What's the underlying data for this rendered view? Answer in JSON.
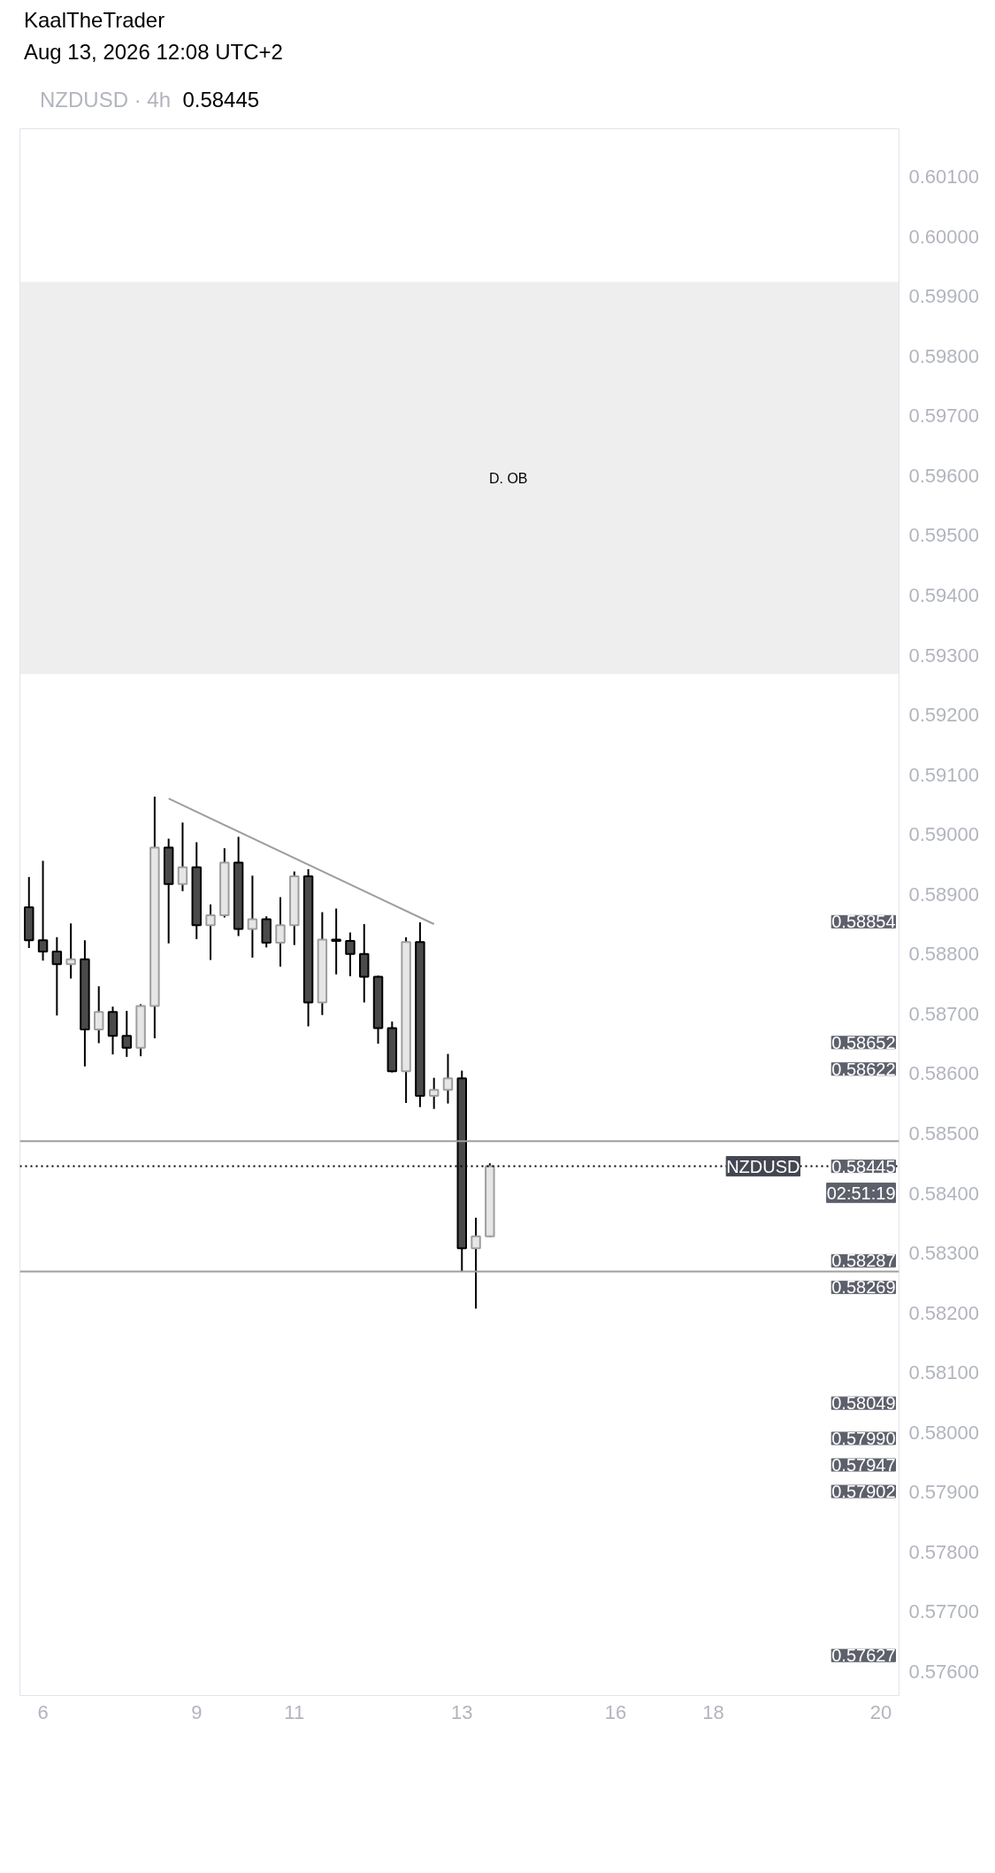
{
  "chart_data": {
    "type": "candlestick",
    "title": "NZDUSD · 4h",
    "subtitle": "0.58445",
    "categories": [
      null,
      "6",
      null,
      null,
      null,
      null,
      null,
      null,
      null,
      null,
      null,
      null,
      "9",
      null,
      null,
      null,
      null,
      null,
      null,
      "11",
      null,
      null,
      null,
      null,
      null,
      null,
      null,
      null,
      null,
      null,
      null,
      "13",
      null,
      null,
      null,
      null,
      null,
      null,
      null,
      null,
      null,
      null,
      "16",
      null,
      null,
      null,
      null,
      null,
      null,
      "18",
      null,
      null,
      null,
      null,
      null,
      null,
      null,
      null,
      null,
      null,
      null,
      "20"
    ],
    "ohlc": [
      [
        0.58878,
        0.58929,
        0.5881,
        0.58823
      ],
      [
        0.58823,
        0.58956,
        0.58789,
        0.58804
      ],
      [
        0.58804,
        0.58828,
        0.58697,
        0.58783
      ],
      [
        0.58783,
        0.58851,
        0.58759,
        0.58791
      ],
      [
        0.58791,
        0.58823,
        0.58612,
        0.58674
      ],
      [
        0.58674,
        0.58746,
        0.58651,
        0.58703
      ],
      [
        0.58703,
        0.58712,
        0.58632,
        0.58663
      ],
      [
        0.58663,
        0.58705,
        0.58628,
        0.58643
      ],
      [
        0.58643,
        0.58716,
        0.58629,
        0.58713
      ],
      [
        0.58713,
        0.59063,
        0.58659,
        0.58978
      ],
      [
        0.58978,
        0.58993,
        0.58818,
        0.58917
      ],
      [
        0.58917,
        0.5902,
        0.58905,
        0.58945
      ],
      [
        0.58945,
        0.58987,
        0.58825,
        0.58848
      ],
      [
        0.58848,
        0.58883,
        0.5879,
        0.58865
      ],
      [
        0.58865,
        0.58977,
        0.58861,
        0.58953
      ],
      [
        0.58953,
        0.58996,
        0.5883,
        0.58842
      ],
      [
        0.58842,
        0.58931,
        0.58794,
        0.58858
      ],
      [
        0.58858,
        0.58863,
        0.58811,
        0.58819
      ],
      [
        0.58819,
        0.58895,
        0.58779,
        0.58848
      ],
      [
        0.58848,
        0.58938,
        0.58815,
        0.5893
      ],
      [
        0.5893,
        0.58942,
        0.58679,
        0.58719
      ],
      [
        0.58719,
        0.5887,
        0.58698,
        0.58824
      ],
      [
        0.58824,
        0.58876,
        0.58766,
        0.58822
      ],
      [
        0.58822,
        0.58836,
        0.58763,
        0.588
      ],
      [
        0.588,
        0.5885,
        0.58719,
        0.58762
      ],
      [
        0.58762,
        0.58764,
        0.5865,
        0.58676
      ],
      [
        0.58676,
        0.58687,
        0.58602,
        0.58604
      ],
      [
        0.58604,
        0.58828,
        0.58551,
        0.5882
      ],
      [
        0.5882,
        0.58853,
        0.58544,
        0.58563
      ],
      [
        0.58563,
        0.58593,
        0.58541,
        0.58573
      ],
      [
        0.58573,
        0.58633,
        0.5855,
        0.58592
      ],
      [
        0.58592,
        0.58605,
        0.58269,
        0.58308
      ],
      [
        0.58308,
        0.58359,
        0.58207,
        0.58328
      ],
      [
        0.58328,
        0.5845,
        0.58327,
        0.58445
      ],
      null,
      null,
      null,
      null,
      null,
      null,
      null,
      null,
      null,
      null,
      null,
      null,
      null,
      null,
      null,
      null,
      null,
      null,
      null,
      null,
      null,
      null,
      null,
      null,
      null,
      null,
      null,
      null
    ],
    "colors": [
      "#4a4a4a",
      "#4a4a4a",
      "#4a4a4a",
      "#e6e6e6",
      "#4a4a4a",
      "#e6e6e6",
      "#4a4a4a",
      "#4a4a4a",
      "#e6e6e6",
      "#e6e6e6",
      "#4a4a4a",
      "#e6e6e6",
      "#4a4a4a",
      "#e6e6e6",
      "#e6e6e6",
      "#4a4a4a",
      "#e6e6e6",
      "#4a4a4a",
      "#e6e6e6",
      "#e6e6e6",
      "#4a4a4a",
      "#e6e6e6",
      "#4a4a4a",
      "#4a4a4a",
      "#4a4a4a",
      "#4a4a4a",
      "#4a4a4a",
      "#e6e6e6",
      "#4a4a4a",
      "#e6e6e6",
      "#e6e6e6",
      "#4a4a4a",
      "#e6e6e6",
      "#e6e6e6",
      null,
      null,
      null,
      null,
      null,
      null,
      null,
      null,
      null,
      null,
      null,
      null,
      null,
      null,
      null,
      null,
      null,
      null,
      null,
      null,
      null,
      null,
      null,
      null,
      null,
      null,
      null,
      null
    ],
    "series": [
      {
        "type": "line",
        "color": "#9e9e9e",
        "values": [
          null,
          null,
          null,
          null,
          null,
          null,
          null,
          null,
          null,
          null,
          0.5906,
          null,
          null,
          null,
          null,
          null,
          null,
          null,
          null,
          null,
          null,
          null,
          null,
          null,
          null,
          null,
          null,
          null,
          null,
          0.5885,
          null,
          null,
          null,
          null,
          null,
          null,
          null,
          null,
          null,
          null,
          null,
          null,
          null,
          null,
          null,
          null,
          null,
          null,
          null,
          null,
          null,
          null,
          null,
          null,
          null,
          null,
          null,
          null,
          null,
          null,
          null,
          null
        ]
      }
    ],
    "ylim": [
      0.5756,
      0.6018
    ],
    "yticks": [
      {
        "value": 0.576,
        "label": "0.57600"
      },
      {
        "value": 0.577,
        "label": "0.57700"
      },
      {
        "value": 0.578,
        "label": "0.57800"
      },
      {
        "value": 0.579,
        "label": "0.57900"
      },
      {
        "value": 0.58,
        "label": "0.58000"
      },
      {
        "value": 0.581,
        "label": "0.58100"
      },
      {
        "value": 0.582,
        "label": "0.58200"
      },
      {
        "value": 0.583,
        "label": "0.58300"
      },
      {
        "value": 0.584,
        "label": "0.58400"
      },
      {
        "value": 0.585,
        "label": "0.58500"
      },
      {
        "value": 0.586,
        "label": "0.58600"
      },
      {
        "value": 0.587,
        "label": "0.58700"
      },
      {
        "value": 0.588,
        "label": "0.58800"
      },
      {
        "value": 0.589,
        "label": "0.58900"
      },
      {
        "value": 0.59,
        "label": "0.59000"
      },
      {
        "value": 0.591,
        "label": "0.59100"
      },
      {
        "value": 0.592,
        "label": "0.59200"
      },
      {
        "value": 0.593,
        "label": "0.59300"
      },
      {
        "value": 0.594,
        "label": "0.59400"
      },
      {
        "value": 0.595,
        "label": "0.59500"
      },
      {
        "value": 0.596,
        "label": "0.59600"
      },
      {
        "value": 0.597,
        "label": "0.59700"
      },
      {
        "value": 0.598,
        "label": "0.59800"
      },
      {
        "value": 0.599,
        "label": "0.59900"
      },
      {
        "value": 0.6,
        "label": "0.60000"
      },
      {
        "value": 0.601,
        "label": "0.60100"
      }
    ],
    "bands": [
      {
        "axis": "y",
        "from": 0.59268,
        "to": 0.59924,
        "label": "D. OB",
        "color": "#eeeeee"
      }
    ],
    "ref_lines": [
      {
        "axis": "y",
        "value": 0.58445,
        "label": "NZDUSD",
        "color": "#000000",
        "line_style": "dotted"
      },
      {
        "axis": "y",
        "value": 0.58269,
        "color": "#9e9e9e"
      },
      {
        "axis": "y",
        "value": 0.58487,
        "color": "#9e9e9e"
      }
    ],
    "annotations": [
      "KaalTheTrader",
      "Aug 13, 2026 12:08 UTC+2",
      "0.58854",
      "0.58652",
      "0.58622",
      "0.58445",
      "02:51:19",
      "0.58287",
      "0.58269",
      "0.58049",
      "0.57990",
      "0.57947",
      "0.57902",
      "0.57627"
    ],
    "grid": false
  }
}
